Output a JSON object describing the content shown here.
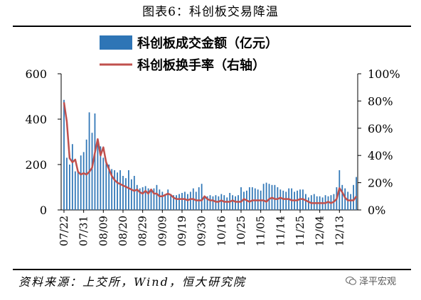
{
  "title": "图表6：科创板交易降温",
  "source": "资料来源：上交所，Wind，恒大研究院",
  "watermark": {
    "text": "泽平宏观",
    "icon": "wechat-icon"
  },
  "chart_data": {
    "type": "bar+line",
    "legend": [
      {
        "label": "科创板成交金额（亿元）",
        "kind": "bar",
        "color": "#2E75B6"
      },
      {
        "label": "科创板换手率（右轴）",
        "kind": "line",
        "color": "#C0504D"
      }
    ],
    "legend_position": "top",
    "y_left": {
      "min": 0,
      "max": 600,
      "ticks": [
        "0",
        "200",
        "400",
        "600"
      ]
    },
    "y_right": {
      "min": 0,
      "max": 100,
      "ticks": [
        "0%",
        "20%",
        "40%",
        "60%",
        "80%",
        "100%"
      ]
    },
    "x_tick_labels": [
      "07/22",
      "07/31",
      "08/09",
      "08/20",
      "08/29",
      "09/09",
      "09/19",
      "09/30",
      "10/16",
      "10/25",
      "11/05",
      "11/14",
      "11/25",
      "12/04",
      "12/13"
    ],
    "x_tick_index": [
      0,
      7,
      14,
      21,
      28,
      35,
      42,
      49,
      56,
      63,
      70,
      77,
      84,
      91,
      98
    ],
    "amount": [
      485,
      230,
      200,
      290,
      170,
      170,
      240,
      255,
      310,
      430,
      340,
      425,
      300,
      280,
      230,
      210,
      200,
      180,
      175,
      165,
      175,
      150,
      140,
      175,
      135,
      150,
      110,
      95,
      100,
      105,
      95,
      85,
      95,
      110,
      90,
      80,
      70,
      90,
      70,
      65,
      65,
      70,
      75,
      80,
      70,
      80,
      95,
      80,
      100,
      115,
      60,
      60,
      65,
      60,
      65,
      60,
      70,
      65,
      55,
      75,
      65,
      60,
      65,
      100,
      80,
      85,
      100,
      100,
      95,
      90,
      85,
      115,
      120,
      115,
      110,
      110,
      100,
      90,
      85,
      80,
      95,
      95,
      80,
      85,
      90,
      90,
      70,
      55,
      65,
      70,
      60,
      60,
      55,
      65,
      60,
      65,
      70,
      100,
      175,
      110,
      95,
      80,
      70,
      110,
      145
    ],
    "turnover_pct": [
      79,
      65,
      38,
      35,
      37,
      28,
      26,
      27,
      26,
      28,
      31,
      42,
      52,
      40,
      46,
      35,
      30,
      25,
      22,
      20,
      19,
      18,
      17,
      16,
      15,
      14,
      15,
      13,
      12,
      14,
      12,
      15,
      12,
      12,
      10,
      10,
      11,
      12,
      11,
      9,
      8,
      8,
      8,
      8,
      7,
      8,
      8,
      7,
      7,
      7,
      10,
      8,
      7,
      7,
      6,
      6,
      7,
      6,
      6,
      6,
      7,
      6,
      6,
      6,
      8,
      7,
      6,
      7,
      7,
      7,
      7,
      7,
      6,
      8,
      9,
      8,
      8,
      9,
      8,
      8,
      8,
      7,
      7,
      7,
      8,
      8,
      7,
      6,
      5,
      5,
      5,
      5,
      5,
      5,
      6,
      5,
      6,
      8,
      16,
      13,
      9,
      7,
      7,
      7,
      10
    ]
  }
}
